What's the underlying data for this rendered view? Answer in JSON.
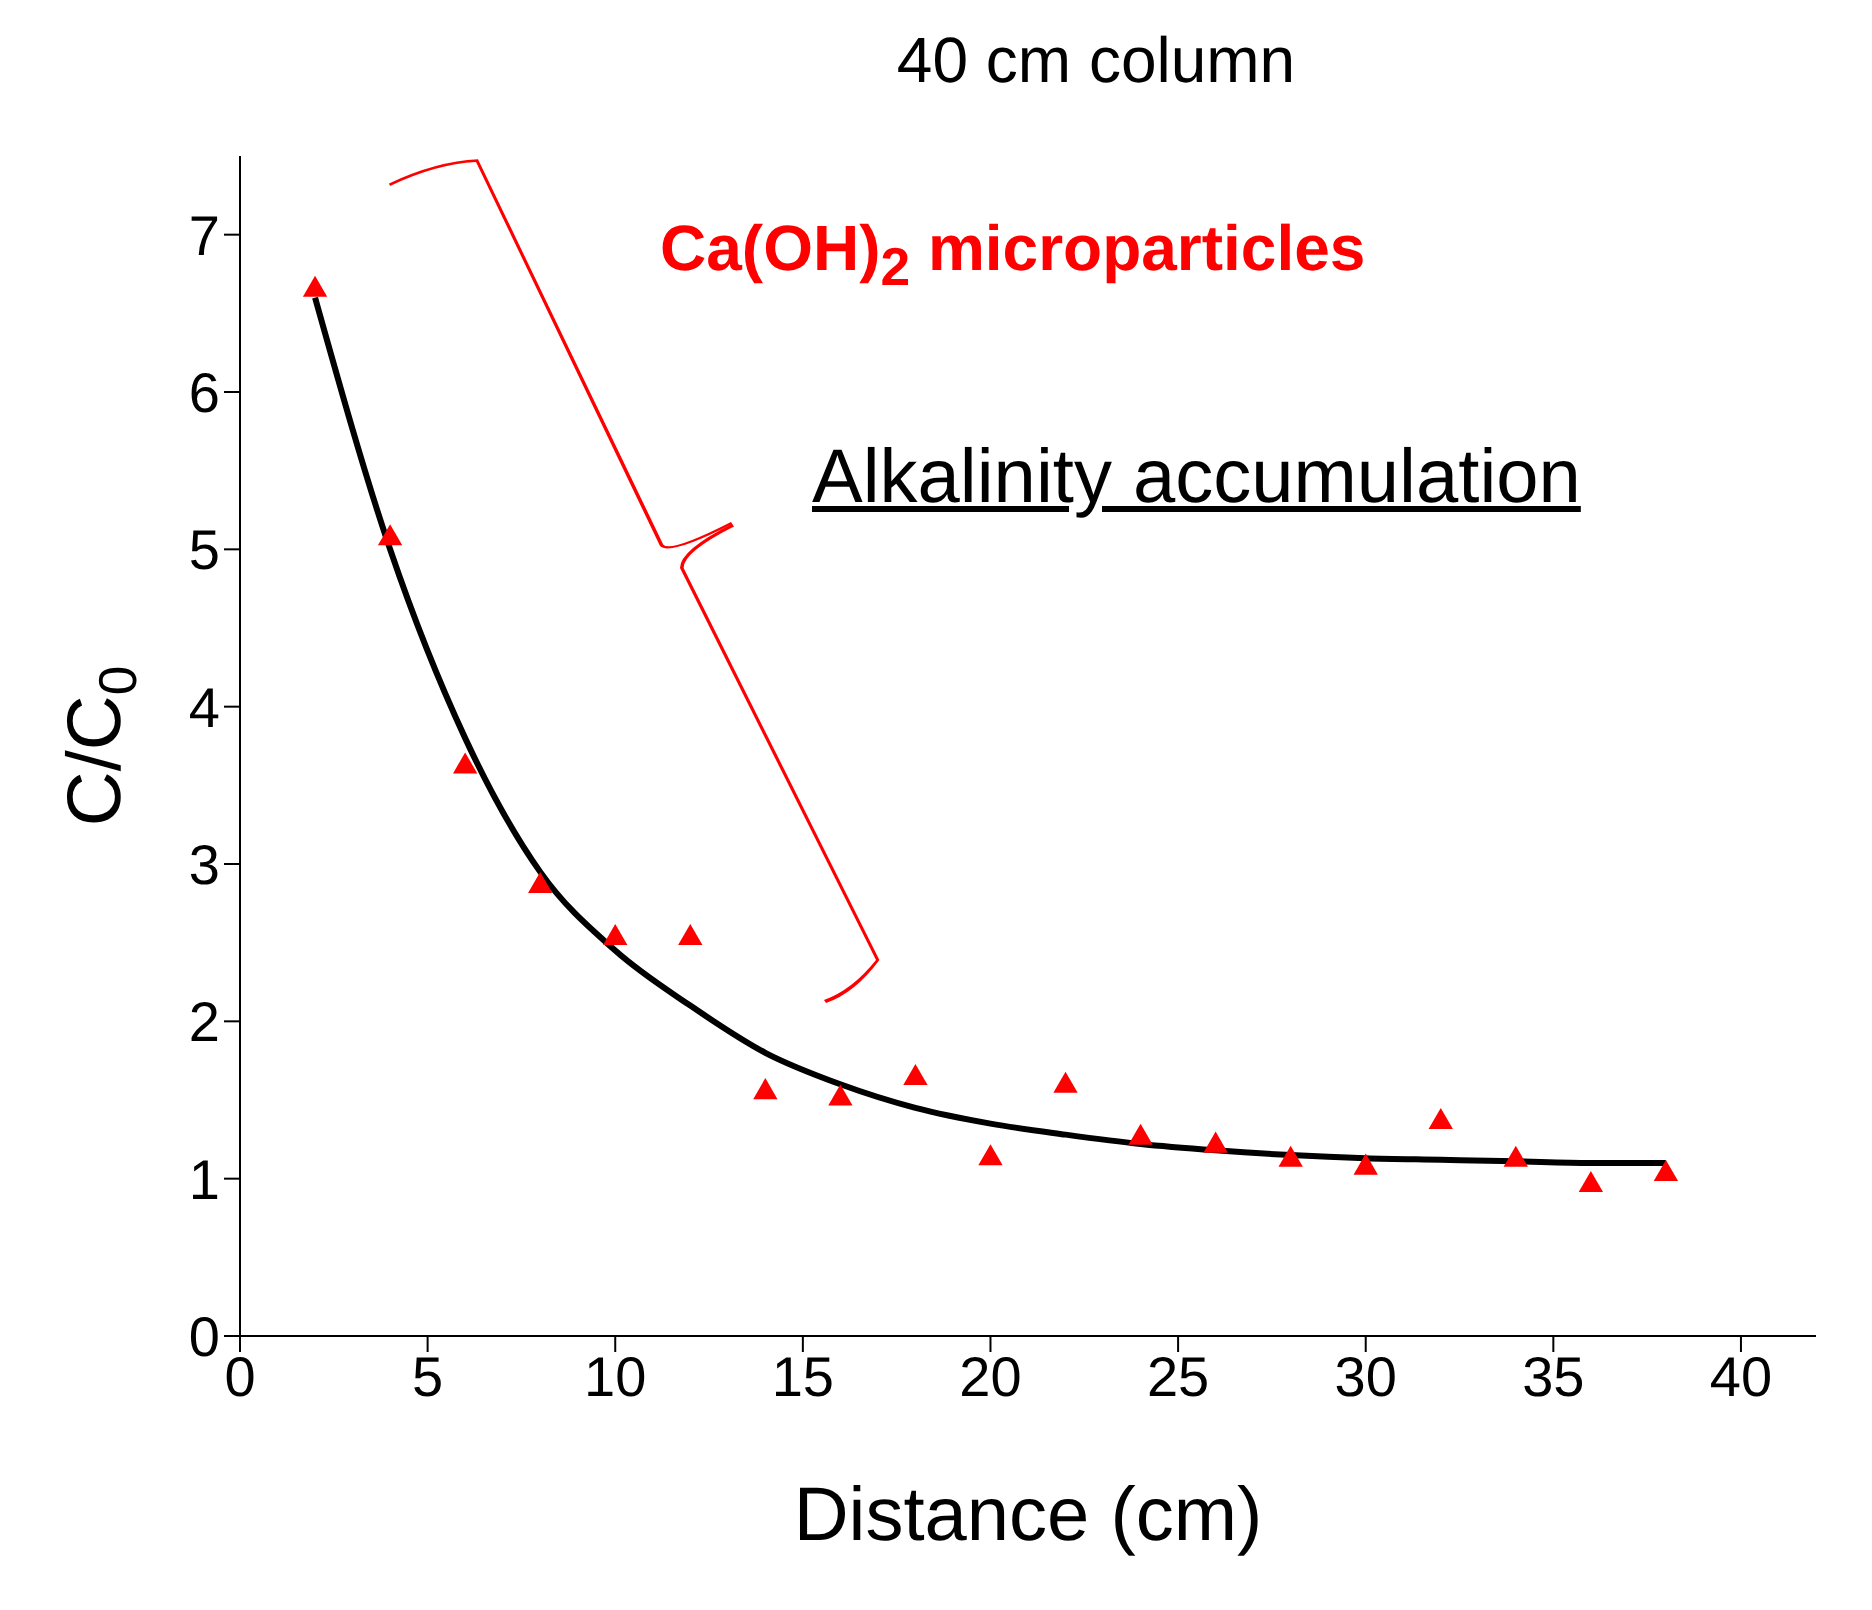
{
  "chart_data": {
    "type": "scatter",
    "title": "40 cm column",
    "xlabel": "Distance (cm)",
    "ylabel": "C/C$_{0}$",
    "annotations": [
      "Ca(OH)$_{2}$ microparticles",
      "Alkalinity accumulation"
    ],
    "xlim": [
      0,
      42
    ],
    "xticks": [
      0,
      5,
      10,
      15,
      20,
      25,
      30,
      35,
      40
    ],
    "ylim": [
      0,
      7.5
    ],
    "yticks": [
      0,
      1,
      2,
      3,
      4,
      5,
      6,
      7
    ],
    "grid": false,
    "marker": "triangle",
    "series": [
      {
        "color": "#ff0000",
        "x": [
          2,
          4,
          6,
          8,
          10,
          12,
          14,
          16,
          18,
          20,
          22,
          24,
          26,
          28,
          30,
          32,
          34,
          36,
          38
        ],
        "values": [
          6.65,
          5.07,
          3.62,
          2.86,
          2.53,
          2.53,
          1.55,
          1.51,
          1.64,
          1.13,
          1.59,
          1.26,
          1.21,
          1.12,
          1.07,
          1.36,
          1.12,
          0.96,
          1.03
        ]
      },
      {
        "type": "line",
        "color": "#000000",
        "marker": "none",
        "line_style": "solid",
        "x": [
          2,
          4,
          6,
          8,
          10,
          12,
          14,
          16,
          18,
          20,
          22,
          24,
          26,
          28,
          30,
          32,
          34,
          36,
          38
        ],
        "values": [
          6.6,
          5.0,
          3.8,
          2.95,
          2.45,
          2.1,
          1.8,
          1.6,
          1.45,
          1.35,
          1.28,
          1.22,
          1.18,
          1.15,
          1.13,
          1.12,
          1.11,
          1.1,
          1.1
        ]
      }
    ]
  }
}
